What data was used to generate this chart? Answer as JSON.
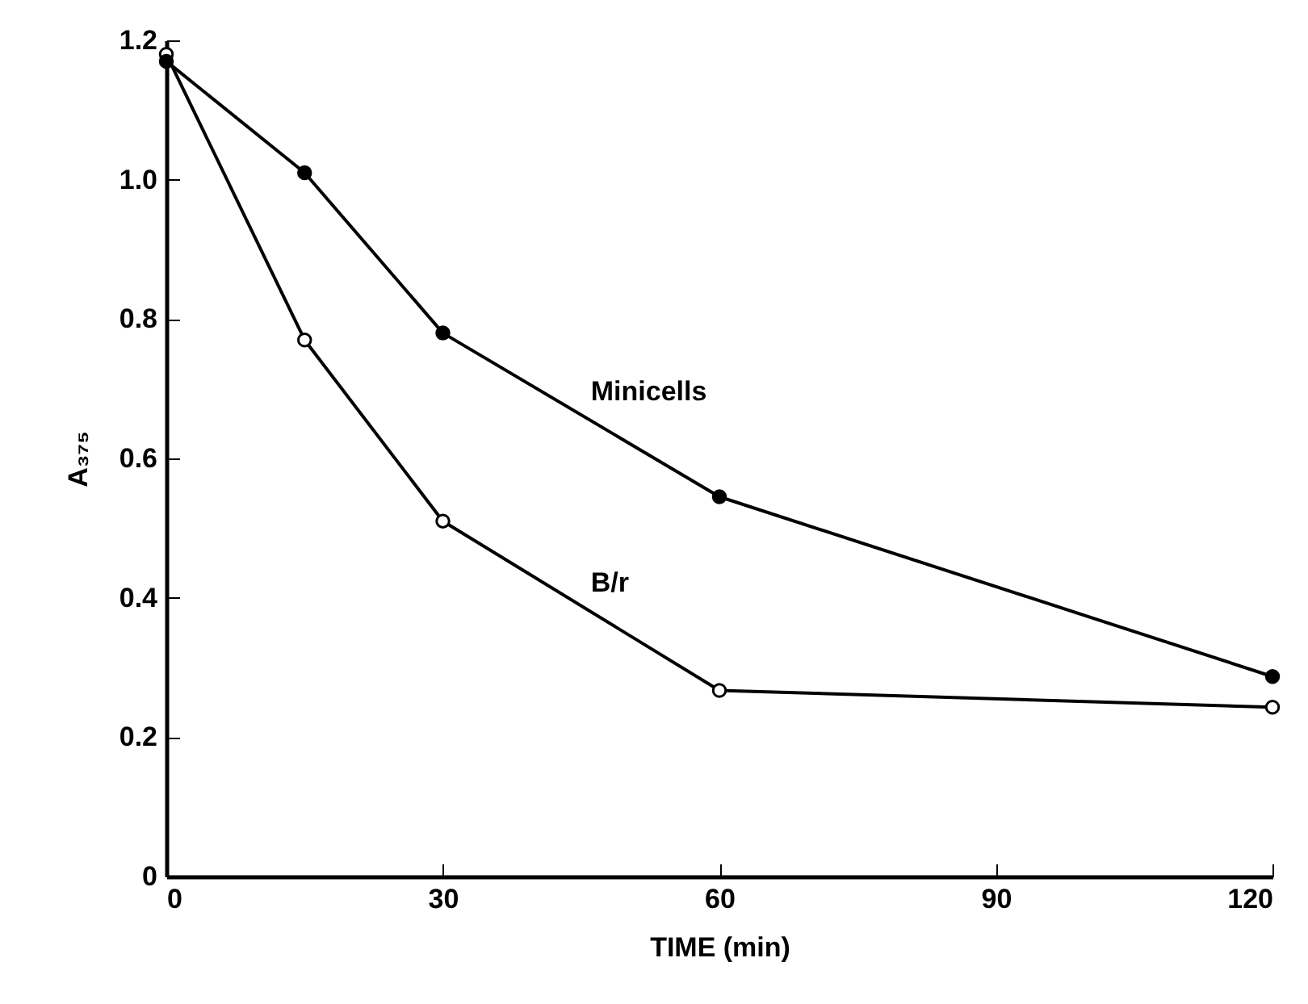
{
  "chart_data": {
    "type": "line",
    "xlabel": "TIME (min)",
    "ylabel": "A₃₇₅",
    "x": [
      0,
      15,
      30,
      60,
      120
    ],
    "series": [
      {
        "name": "Minicells",
        "color": "#000000",
        "values": [
          1.17,
          1.01,
          0.78,
          0.545,
          0.287
        ]
      },
      {
        "name": "B/r",
        "color": "#000000",
        "values": [
          1.18,
          0.77,
          0.51,
          0.267,
          0.243
        ]
      }
    ],
    "xlim": [
      0,
      120
    ],
    "xticks": [
      0,
      30,
      60,
      90,
      120
    ],
    "ylim": [
      0,
      1.2
    ],
    "yticks": [
      0,
      {
        "value": 0.2,
        "label": "0.2"
      },
      {
        "value": 0.4,
        "label": "0.4"
      },
      {
        "value": 0.6,
        "label": "0.6"
      },
      {
        "value": 0.8,
        "label": "0.8"
      },
      {
        "value": 1,
        "label": "1.0"
      },
      {
        "value": 1.2,
        "label": "1.2"
      }
    ],
    "grid": false,
    "legend": false,
    "marker": "circle",
    "line_style": "solid"
  }
}
